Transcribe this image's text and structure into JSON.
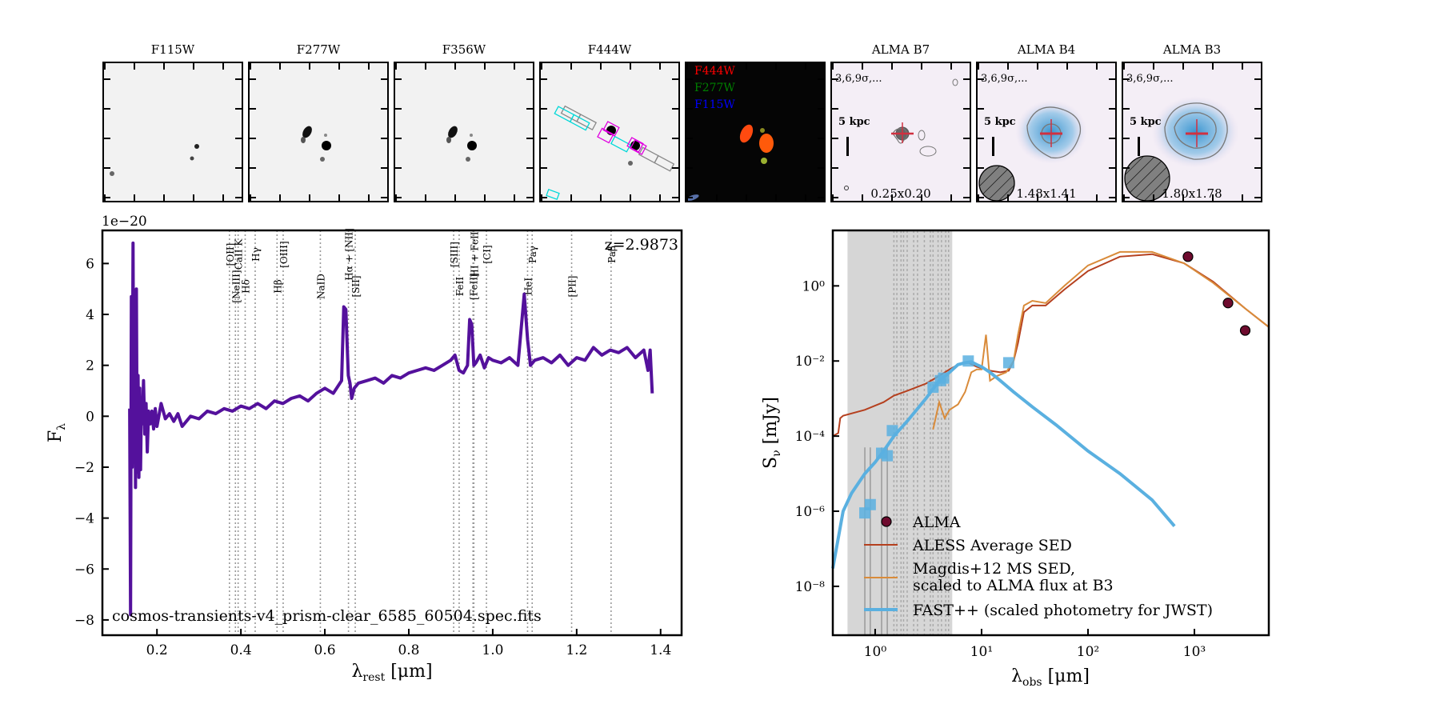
{
  "cutouts": [
    {
      "title": "F115W",
      "kind": "gray"
    },
    {
      "title": "F277W",
      "kind": "gray"
    },
    {
      "title": "F356W",
      "kind": "gray"
    },
    {
      "title": "F444W",
      "kind": "gray-slits"
    },
    {
      "title": "",
      "kind": "rgb",
      "channels": [
        {
          "label": "F444W",
          "color": "#ff0000"
        },
        {
          "label": "F277W",
          "color": "#008000"
        },
        {
          "label": "F115W",
          "color": "#0000ff"
        }
      ]
    },
    {
      "title": "ALMA B7",
      "kind": "alma",
      "contours": "3,6,9σ,...",
      "scale": "5 kpc",
      "beam": "0.25x0.20"
    },
    {
      "title": "ALMA B4",
      "kind": "alma",
      "contours": "3,6,9σ,...",
      "scale": "5 kpc",
      "beam": "1.48x1.41"
    },
    {
      "title": "ALMA B3",
      "kind": "alma",
      "contours": "3,6,9σ,...",
      "scale": "5 kpc",
      "beam": "1.80x1.78"
    }
  ],
  "chart_data": [
    {
      "type": "line",
      "title": "",
      "xlabel": "λrest [μm]",
      "ylabel": "Fλ",
      "y_offset_label": "1e−20",
      "xlim": [
        0.07,
        1.45
      ],
      "ylim": [
        -8.6,
        7.3
      ],
      "xticks": [
        0.2,
        0.4,
        0.6,
        0.8,
        1.0,
        1.2,
        1.4
      ],
      "xtick_labels": [
        "0.2",
        "0.4",
        "0.6",
        "0.8",
        "1.0",
        "1.2",
        "1.4"
      ],
      "yticks": [
        -8,
        -6,
        -4,
        -2,
        0,
        2,
        4,
        6
      ],
      "ytick_labels": [
        "−8",
        "−6",
        "−4",
        "−2",
        "0",
        "2",
        "4",
        "6"
      ],
      "redshift_label": "z=2.9873",
      "file_label": "cosmos-transients-v4_prism-clear_6585_60504.spec.fits",
      "line_color": "#54119c",
      "series": [
        {
          "name": "spectrum",
          "x": [
            0.135,
            0.137,
            0.139,
            0.141,
            0.143,
            0.145,
            0.147,
            0.149,
            0.151,
            0.153,
            0.155,
            0.157,
            0.159,
            0.161,
            0.163,
            0.165,
            0.168,
            0.171,
            0.174,
            0.177,
            0.18,
            0.184,
            0.188,
            0.192,
            0.196,
            0.2,
            0.21,
            0.22,
            0.23,
            0.24,
            0.25,
            0.26,
            0.28,
            0.3,
            0.32,
            0.34,
            0.36,
            0.38,
            0.4,
            0.42,
            0.44,
            0.46,
            0.48,
            0.5,
            0.52,
            0.54,
            0.56,
            0.58,
            0.6,
            0.62,
            0.64,
            0.645,
            0.65,
            0.656,
            0.66,
            0.664,
            0.67,
            0.68,
            0.7,
            0.72,
            0.74,
            0.76,
            0.78,
            0.8,
            0.82,
            0.84,
            0.86,
            0.88,
            0.9,
            0.91,
            0.92,
            0.93,
            0.94,
            0.945,
            0.95,
            0.955,
            0.96,
            0.97,
            0.98,
            0.99,
            1.0,
            1.02,
            1.04,
            1.06,
            1.075,
            1.083,
            1.09,
            1.1,
            1.12,
            1.14,
            1.16,
            1.18,
            1.2,
            1.22,
            1.24,
            1.26,
            1.28,
            1.3,
            1.32,
            1.34,
            1.36,
            1.37,
            1.375,
            1.38
          ],
          "y": [
            0.3,
            -7.8,
            4.7,
            -2.0,
            6.8,
            -1.8,
            2.7,
            -2.8,
            5.0,
            -2.2,
            1.6,
            -2.4,
            1.1,
            -2.1,
            0.5,
            -0.3,
            1.4,
            -0.7,
            0.5,
            -1.4,
            0.2,
            -0.3,
            0.2,
            -0.5,
            0.3,
            -0.4,
            0.5,
            -0.1,
            0.1,
            -0.2,
            0.1,
            -0.4,
            0.0,
            -0.1,
            0.2,
            0.1,
            0.3,
            0.2,
            0.4,
            0.3,
            0.5,
            0.3,
            0.6,
            0.5,
            0.7,
            0.8,
            0.6,
            0.9,
            1.1,
            0.9,
            1.4,
            4.3,
            4.2,
            1.6,
            1.3,
            0.7,
            1.1,
            1.3,
            1.4,
            1.5,
            1.3,
            1.6,
            1.5,
            1.7,
            1.8,
            1.9,
            1.8,
            2.0,
            2.2,
            2.4,
            1.8,
            1.7,
            2.0,
            3.8,
            3.6,
            2.0,
            2.1,
            2.4,
            1.9,
            2.3,
            2.2,
            2.1,
            2.3,
            2.0,
            4.8,
            3.0,
            2.0,
            2.2,
            2.3,
            2.1,
            2.4,
            2.0,
            2.3,
            2.2,
            2.7,
            2.4,
            2.6,
            2.5,
            2.7,
            2.3,
            2.6,
            1.8,
            2.6,
            0.9
          ]
        }
      ],
      "emission_lines": [
        {
          "label": "[OII]",
          "x": 0.3727
        },
        {
          "label": "[NeIII]",
          "x": 0.3869
        },
        {
          "label": "CaII K",
          "x": 0.3934
        },
        {
          "label": "Hδ",
          "x": 0.4102
        },
        {
          "label": "Hγ",
          "x": 0.434
        },
        {
          "label": "Hβ",
          "x": 0.4861
        },
        {
          "label": "[OIII]",
          "x": 0.5007
        },
        {
          "label": "NaID",
          "x": 0.5893
        },
        {
          "label": "Hα + [NII]",
          "x": 0.6563
        },
        {
          "label": "[SII]",
          "x": 0.6724
        },
        {
          "label": "[SIII]",
          "x": 0.9069
        },
        {
          "label": "[FeII]",
          "x": 0.953
        },
        {
          "label": "HI + FeII",
          "x": 0.955
        },
        {
          "label": "FeII",
          "x": 0.92
        },
        {
          "label": "[CI]",
          "x": 0.985
        },
        {
          "label": "HeI",
          "x": 1.083
        },
        {
          "label": "Paγ",
          "x": 1.094
        },
        {
          "label": "[PII]",
          "x": 1.188
        },
        {
          "label": "Paβ",
          "x": 1.282
        }
      ]
    },
    {
      "type": "line",
      "title": "",
      "xlabel": "λobs [μm]",
      "ylabel": "Sν [mJy]",
      "xscale": "log",
      "yscale": "log",
      "xlim": [
        0.4,
        5000
      ],
      "ylim": [
        5e-10,
        30
      ],
      "xtick_labels": [
        "10⁰",
        "10¹",
        "10²",
        "10³"
      ],
      "ytick_labels": [
        "10⁻⁸",
        "10⁻⁶",
        "10⁻⁴",
        "10⁻²",
        "10⁰"
      ],
      "shaded_range": [
        0.55,
        5.3
      ],
      "legend_position": "lower-left",
      "series": [
        {
          "name": "ALMA",
          "kind": "scatter",
          "color": "#6e0b2e",
          "x": [
            870,
            2070,
            3000
          ],
          "y": [
            6.0,
            0.35,
            0.065
          ]
        },
        {
          "name": "ALESS Average SED",
          "kind": "line",
          "color": "#b5401f",
          "x": [
            0.4,
            0.45,
            0.47,
            0.5,
            0.8,
            1.2,
            1.5,
            2,
            3,
            4,
            5,
            6,
            7.5,
            9,
            12,
            15,
            18,
            20,
            22,
            25,
            30,
            40,
            60,
            100,
            200,
            400,
            800,
            1500,
            3000,
            5000
          ],
          "y": [
            0.0001,
            0.00012,
            0.0003,
            0.00035,
            0.0005,
            0.0008,
            0.0012,
            0.0016,
            0.0025,
            0.004,
            0.006,
            0.008,
            0.009,
            0.007,
            0.0055,
            0.005,
            0.0055,
            0.01,
            0.03,
            0.2,
            0.3,
            0.3,
            0.8,
            2.5,
            6,
            7,
            4,
            1.3,
            0.25,
            0.08
          ]
        },
        {
          "name": "Magdis+12 MS SED, scaled to ALMA flux at B3",
          "kind": "line",
          "color": "#d98b3a",
          "x": [
            3.5,
            4,
            4.5,
            5,
            6,
            7,
            8,
            9,
            10,
            11,
            12,
            14,
            17,
            20,
            22,
            25,
            30,
            40,
            60,
            100,
            200,
            400,
            800,
            1500,
            3000,
            5000
          ],
          "y": [
            0.00015,
            0.0008,
            0.0003,
            0.0005,
            0.0007,
            0.0015,
            0.005,
            0.006,
            0.006,
            0.05,
            0.003,
            0.004,
            0.005,
            0.01,
            0.05,
            0.3,
            0.4,
            0.35,
            1.0,
            3.5,
            8,
            8,
            4,
            1.2,
            0.25,
            0.08
          ]
        },
        {
          "name": "FAST++ (scaled photometry for JWST)",
          "kind": "line",
          "color": "#5ab0e0",
          "x": [
            0.4,
            0.5,
            0.6,
            0.8,
            1.0,
            1.2,
            1.5,
            2,
            3,
            4,
            5,
            6,
            7,
            8,
            9,
            10,
            12,
            15,
            20,
            30,
            50,
            100,
            200,
            400,
            650
          ],
          "y": [
            3e-08,
            1e-06,
            3e-06,
            1e-05,
            2e-05,
            4e-05,
            0.0001,
            0.00025,
            0.001,
            0.003,
            0.005,
            0.008,
            0.009,
            0.0095,
            0.008,
            0.007,
            0.005,
            0.003,
            0.0015,
            0.0006,
            0.0002,
            4e-05,
            1e-05,
            2e-06,
            4e-07
          ]
        },
        {
          "name": "photometry",
          "kind": "square",
          "color": "#5ab0e0",
          "x": [
            0.8,
            0.9,
            1.15,
            1.3,
            1.45,
            3.5,
            4.1,
            4.4,
            7.5,
            18
          ],
          "y": [
            9e-07,
            1.5e-06,
            3.5e-05,
            3e-05,
            0.00014,
            0.002,
            0.003,
            0.0035,
            0.01,
            0.009
          ]
        }
      ]
    }
  ]
}
